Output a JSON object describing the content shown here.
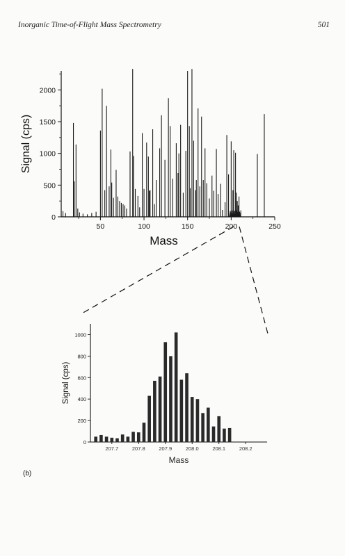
{
  "header": {
    "title": "Inorganic Time-of-Flight Mass Spectrometry",
    "page_number": "501"
  },
  "panel_label": "(b)",
  "chart_data": [
    {
      "type": "bar",
      "xlabel": "Mass",
      "ylabel": "Signal (cps)",
      "xlim": [
        5,
        250
      ],
      "ylim": [
        0,
        2300
      ],
      "x_ticks": [
        50,
        100,
        150,
        200,
        250
      ],
      "y_ticks": [
        0,
        500,
        1000,
        1500,
        2000
      ],
      "grid": false,
      "x": [
        7,
        10,
        19,
        20,
        22,
        24,
        26,
        30,
        35,
        40,
        45,
        50,
        52,
        55,
        57,
        60,
        62,
        63,
        65,
        68,
        70,
        72,
        74,
        76,
        78,
        80,
        84,
        87,
        88,
        90,
        93,
        95,
        98,
        100,
        103,
        105,
        106,
        107,
        110,
        112,
        114,
        118,
        120,
        124,
        128,
        130,
        133,
        137,
        139,
        140,
        142,
        145,
        148,
        150,
        152,
        153,
        155,
        157,
        159,
        160,
        162,
        164,
        166,
        168,
        170,
        172,
        175,
        178,
        180,
        183,
        185,
        188,
        190,
        193,
        195,
        197,
        200,
        202,
        203,
        205,
        206,
        207,
        208,
        209,
        230,
        238
      ],
      "values": [
        90,
        60,
        1480,
        560,
        1140,
        130,
        70,
        50,
        40,
        60,
        80,
        1360,
        2020,
        420,
        1750,
        480,
        1060,
        540,
        300,
        740,
        320,
        250,
        220,
        200,
        180,
        130,
        1030,
        2330,
        960,
        440,
        330,
        150,
        1320,
        440,
        1170,
        950,
        410,
        420,
        1380,
        200,
        580,
        1080,
        1600,
        900,
        1870,
        1430,
        600,
        1160,
        690,
        1000,
        1450,
        380,
        1040,
        2300,
        1430,
        450,
        2330,
        1200,
        420,
        580,
        1710,
        480,
        1580,
        580,
        1080,
        530,
        290,
        650,
        410,
        1070,
        360,
        520,
        110,
        230,
        1290,
        670,
        1190,
        420,
        1050,
        1010,
        380,
        250,
        180,
        320,
        990,
        1620
      ]
    },
    {
      "type": "bar",
      "xlabel": "Mass",
      "ylabel": "Signal (cps)",
      "xlim": [
        207.62,
        208.28
      ],
      "ylim": [
        0,
        1100
      ],
      "x_ticks": [
        207.7,
        207.8,
        207.9,
        208.0,
        208.1,
        208.2
      ],
      "x_tick_labels": [
        "207.7",
        "207.8",
        "207.9",
        "208.0",
        "208.1",
        "208.2"
      ],
      "y_ticks": [
        0,
        200,
        400,
        600,
        800,
        1000
      ],
      "grid": false,
      "x": [
        207.64,
        207.66,
        207.68,
        207.7,
        207.72,
        207.74,
        207.76,
        207.78,
        207.8,
        207.82,
        207.84,
        207.86,
        207.88,
        207.9,
        207.92,
        207.94,
        207.96,
        207.98,
        208.0,
        208.02,
        208.04,
        208.06,
        208.08,
        208.1,
        208.12,
        208.14,
        208.16,
        208.18,
        208.2,
        208.22,
        208.24,
        208.26
      ],
      "values": [
        50,
        65,
        50,
        40,
        35,
        70,
        50,
        95,
        90,
        180,
        430,
        570,
        610,
        930,
        800,
        1020,
        580,
        640,
        420,
        400,
        270,
        320,
        145,
        240,
        125,
        130,
        0,
        0,
        0,
        0,
        0,
        0
      ]
    }
  ]
}
